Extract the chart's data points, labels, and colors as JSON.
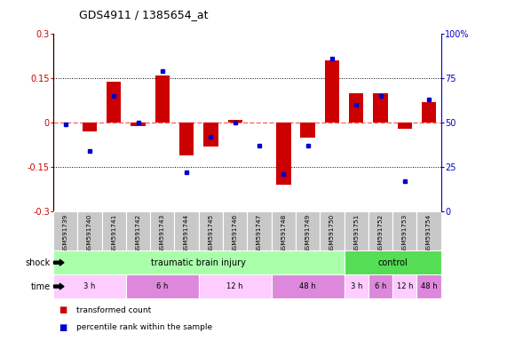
{
  "title": "GDS4911 / 1385654_at",
  "samples": [
    "GSM591739",
    "GSM591740",
    "GSM591741",
    "GSM591742",
    "GSM591743",
    "GSM591744",
    "GSM591745",
    "GSM591746",
    "GSM591747",
    "GSM591748",
    "GSM591749",
    "GSM591750",
    "GSM591751",
    "GSM591752",
    "GSM591753",
    "GSM591754"
  ],
  "bar_values": [
    0.0,
    -0.03,
    0.14,
    -0.01,
    0.16,
    -0.11,
    -0.08,
    0.01,
    0.0,
    -0.21,
    -0.05,
    0.21,
    0.1,
    0.1,
    -0.02,
    0.07
  ],
  "dot_values": [
    49,
    34,
    65,
    50,
    79,
    22,
    42,
    50,
    37,
    21,
    37,
    86,
    60,
    65,
    17,
    63
  ],
  "ylim_left": [
    -0.3,
    0.3
  ],
  "ylim_right": [
    0,
    100
  ],
  "yticks_left": [
    -0.3,
    -0.15,
    0.0,
    0.15,
    0.3
  ],
  "ytick_labels_left": [
    "-0.3",
    "-0.15",
    "0",
    "0.15",
    "0.3"
  ],
  "yticks_right": [
    0,
    25,
    50,
    75,
    100
  ],
  "ytick_labels_right": [
    "0",
    "25",
    "50",
    "75",
    "100%"
  ],
  "bar_color": "#cc0000",
  "dot_color": "#0000cc",
  "zero_line_color": "#ff6666",
  "label_bg_color": "#c8c8c8",
  "shock_row_label": "shock",
  "time_row_label": "time",
  "shock_groups": [
    {
      "label": "traumatic brain injury",
      "start": 0,
      "end": 12,
      "color": "#aaffaa"
    },
    {
      "label": "control",
      "start": 12,
      "end": 16,
      "color": "#55dd55"
    }
  ],
  "time_groups": [
    {
      "label": "3 h",
      "start": 0,
      "end": 3,
      "color": "#ffccff"
    },
    {
      "label": "6 h",
      "start": 3,
      "end": 6,
      "color": "#dd88dd"
    },
    {
      "label": "12 h",
      "start": 6,
      "end": 9,
      "color": "#ffccff"
    },
    {
      "label": "48 h",
      "start": 9,
      "end": 12,
      "color": "#dd88dd"
    },
    {
      "label": "3 h",
      "start": 12,
      "end": 13,
      "color": "#ffccff"
    },
    {
      "label": "6 h",
      "start": 13,
      "end": 14,
      "color": "#dd88dd"
    },
    {
      "label": "12 h",
      "start": 14,
      "end": 15,
      "color": "#ffccff"
    },
    {
      "label": "48 h",
      "start": 15,
      "end": 16,
      "color": "#dd88dd"
    }
  ],
  "legend_items": [
    {
      "color": "#cc0000",
      "label": "transformed count"
    },
    {
      "color": "#0000cc",
      "label": "percentile rank within the sample"
    }
  ]
}
